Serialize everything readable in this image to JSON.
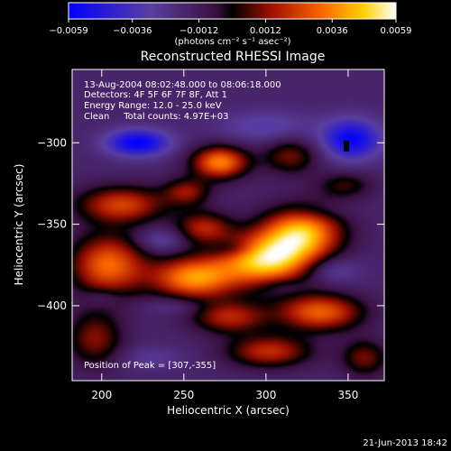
{
  "chart_data": {
    "type": "heatmap",
    "title": "Reconstructed RHESSI Image",
    "xlabel": "Heliocentric X (arcsec)",
    "ylabel": "Heliocentric Y (arcsec)",
    "xlim": [
      182,
      372
    ],
    "ylim": [
      -446,
      -255
    ],
    "x_ticks": [
      200,
      250,
      300,
      350
    ],
    "y_ticks": [
      -300,
      -350,
      -400
    ],
    "colorbar": {
      "range": [
        -0.0059,
        0.0059
      ],
      "ticks": [
        -0.0059,
        -0.0036,
        -0.0012,
        0.0012,
        0.0036,
        0.0059
      ],
      "tick_labels": [
        "-0.0059",
        "-0.0036",
        "-0.0012",
        "0.0012",
        "0.0036",
        "0.0059"
      ],
      "unit_label": "(photons cm⁻² s⁻¹ asec⁻²)"
    },
    "info_lines": [
      "13-Aug-2004 08:02:48.000 to 08:06:18.000",
      "Detectors: 4F 5F 6F 7F 8F, Att 1",
      "Energy Range: 12.0 - 25.0 keV",
      "Clean     Total counts: 4.97E+03"
    ],
    "peak_label": "Position of Peak = [307,-355]",
    "peak_position": [
      307,
      -355
    ],
    "intensity_blobs": [
      {
        "x": 300,
        "y": -372,
        "value": 0.0059,
        "sx": 20,
        "sy": 11
      },
      {
        "x": 322,
        "y": -355,
        "value": 0.0052,
        "sx": 17,
        "sy": 11
      },
      {
        "x": 256,
        "y": -383,
        "value": 0.0048,
        "sx": 18,
        "sy": 9
      },
      {
        "x": 272,
        "y": -312,
        "value": 0.0046,
        "sx": 12,
        "sy": 7
      },
      {
        "x": 204,
        "y": -375,
        "value": 0.0042,
        "sx": 16,
        "sy": 13
      },
      {
        "x": 212,
        "y": -338,
        "value": 0.0034,
        "sx": 19,
        "sy": 8
      },
      {
        "x": 262,
        "y": -352,
        "value": 0.0026,
        "sx": 12,
        "sy": 7
      },
      {
        "x": 252,
        "y": -330,
        "value": 0.0022,
        "sx": 10,
        "sy": 6
      },
      {
        "x": 333,
        "y": -404,
        "value": 0.004,
        "sx": 18,
        "sy": 8
      },
      {
        "x": 278,
        "y": -407,
        "value": 0.0028,
        "sx": 16,
        "sy": 7
      },
      {
        "x": 302,
        "y": -428,
        "value": 0.003,
        "sx": 18,
        "sy": 7
      },
      {
        "x": 196,
        "y": -420,
        "value": 0.0022,
        "sx": 12,
        "sy": 12
      },
      {
        "x": 315,
        "y": -308,
        "value": 0.002,
        "sx": 12,
        "sy": 8
      },
      {
        "x": 348,
        "y": -326,
        "value": 0.0014,
        "sx": 12,
        "sy": 6
      },
      {
        "x": 360,
        "y": -432,
        "value": 0.002,
        "sx": 10,
        "sy": 8
      },
      {
        "x": 222,
        "y": -300,
        "value": -0.0048,
        "sx": 14,
        "sy": 6
      },
      {
        "x": 352,
        "y": -298,
        "value": -0.0046,
        "sx": 13,
        "sy": 9
      },
      {
        "x": 300,
        "y": -290,
        "value": -0.0022,
        "sx": 20,
        "sy": 7
      },
      {
        "x": 236,
        "y": -360,
        "value": -0.0022,
        "sx": 10,
        "sy": 5
      },
      {
        "x": 280,
        "y": -365,
        "value": -0.0018,
        "sx": 10,
        "sy": 4
      },
      {
        "x": 245,
        "y": -400,
        "value": -0.0016,
        "sx": 14,
        "sy": 4
      },
      {
        "x": 310,
        "y": -388,
        "value": -0.0016,
        "sx": 10,
        "sy": 4
      },
      {
        "x": 340,
        "y": -378,
        "value": -0.0022,
        "sx": 12,
        "sy": 6
      },
      {
        "x": 230,
        "y": -432,
        "value": -0.0016,
        "sx": 14,
        "sy": 5
      },
      {
        "x": 330,
        "y": -342,
        "value": -0.0012,
        "sx": 14,
        "sy": 4
      },
      {
        "x": 200,
        "y": -395,
        "value": -0.0016,
        "sx": 8,
        "sy": 4
      }
    ],
    "base_value": -0.0016,
    "marker": {
      "x": 349,
      "y": -302,
      "color": "#000000"
    }
  },
  "footer": {
    "timestamp": "21-Jun-2013 18:42"
  }
}
